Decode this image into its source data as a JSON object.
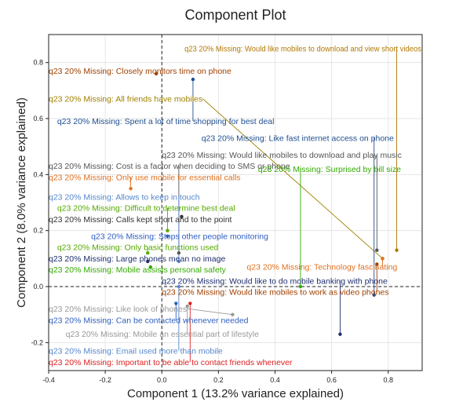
{
  "chart_data": {
    "type": "scatter",
    "title": "Component Plot",
    "xlabel": "Component 1 (13.2% variance explained)",
    "ylabel": "Component 2 (8.0% variance explained)",
    "xlim": [
      -0.4,
      0.92
    ],
    "ylim": [
      -0.3,
      0.9
    ],
    "xticks": [
      "-0.4",
      "-0.2",
      "0.0",
      "0.2",
      "0.4",
      "0.6",
      "0.8"
    ],
    "yticks": [
      "-0.2",
      "0.0",
      "0.2",
      "0.4",
      "0.6",
      "0.8"
    ],
    "grid": true,
    "points": [
      {
        "label": "q23 20% Missing: Would like mobiles to download and view short videos",
        "x": 0.83,
        "y": 0.13,
        "lx": 0.08,
        "ly": 0.84,
        "color": "#b07800"
      },
      {
        "label": "q23 20% Missing: Closely monitors time on phone",
        "x": -0.02,
        "y": 0.76,
        "lx": -0.4,
        "ly": 0.76,
        "color": "#a04000"
      },
      {
        "label": "q23 20% Missing: All friends have mobiles",
        "x": 0.78,
        "y": 0.1,
        "lx": -0.4,
        "ly": 0.66,
        "color": "#a08000"
      },
      {
        "label": "q23 20% Missing: Spent a lot of time shopping for best deal",
        "x": 0.11,
        "y": 0.74,
        "lx": -0.37,
        "ly": 0.58,
        "color": "#1f4f8f"
      },
      {
        "label": "q23 20% Missing: Like fast internet access on phone",
        "x": 0.75,
        "y": -0.03,
        "lx": 0.14,
        "ly": 0.52,
        "color": "#1f4f8f"
      },
      {
        "label": "q23 20% Missing: Would like mobiles to download and play music",
        "x": 0.76,
        "y": 0.13,
        "lx": 0.0,
        "ly": 0.46,
        "color": "#555555"
      },
      {
        "label": "q23 20% Missing: Cost is a factor when deciding to SMS or phone",
        "x": 0.06,
        "y": 0.12,
        "lx": -0.4,
        "ly": 0.42,
        "color": "#555555"
      },
      {
        "label": "q23 20% Missing: Surprised by bill size",
        "x": 0.49,
        "y": 0.0,
        "lx": 0.34,
        "ly": 0.41,
        "color": "#33aa00"
      },
      {
        "label": "q23 20% Missing: Only use mobile for essential calls",
        "x": -0.11,
        "y": 0.35,
        "lx": -0.4,
        "ly": 0.38,
        "color": "#e07020"
      },
      {
        "label": "q23 20% Missing: Allows to keep in touch",
        "x": 0.06,
        "y": 0.09,
        "lx": -0.4,
        "ly": 0.31,
        "color": "#5588cc"
      },
      {
        "label": "q23 20% Missing: Difficult to determine best deal",
        "x": 0.02,
        "y": 0.2,
        "lx": -0.37,
        "ly": 0.27,
        "color": "#55aa00"
      },
      {
        "label": "q23 20% Missing: Calls kept short and to the point",
        "x": 0.07,
        "y": 0.25,
        "lx": -0.4,
        "ly": 0.23,
        "color": "#333333"
      },
      {
        "label": "q23 20% Missing: Stops other people monitoring",
        "x": 0.02,
        "y": 0.18,
        "lx": -0.25,
        "ly": 0.17,
        "color": "#2f5fbf"
      },
      {
        "label": "q23 20% Missing: Only basic functions used",
        "x": -0.05,
        "y": 0.12,
        "lx": -0.37,
        "ly": 0.13,
        "color": "#55aa00"
      },
      {
        "label": "q23 20% Missing: Large phones mean no image",
        "x": -0.05,
        "y": 0.09,
        "lx": -0.4,
        "ly": 0.09,
        "color": "#1f2f6f"
      },
      {
        "label": "q23 20% Missing: Mobile assists personal safety",
        "x": -0.04,
        "y": 0.07,
        "lx": -0.4,
        "ly": 0.05,
        "color": "#33aa00"
      },
      {
        "label": "q23 20% Missing: Technology fascinating",
        "x": 0.78,
        "y": 0.1,
        "lx": 0.3,
        "ly": 0.06,
        "color": "#e07020"
      },
      {
        "label": "q23 20% Missing: Would like to do mobile banking with phone",
        "x": 0.63,
        "y": -0.17,
        "lx": 0.0,
        "ly": 0.01,
        "color": "#1f2f6f"
      },
      {
        "label": "q23 20% Missing: Would like mobiles to work as video phones",
        "x": 0.76,
        "y": 0.08,
        "lx": 0.0,
        "ly": -0.03,
        "color": "#a04000"
      },
      {
        "label": "q23 20% Missing: Like look of phones",
        "x": 0.25,
        "y": -0.1,
        "lx": -0.4,
        "ly": -0.09,
        "color": "#999999"
      },
      {
        "label": "q23 20% Missing: Can be contacted whenever needed",
        "x": 0.05,
        "y": -0.06,
        "lx": -0.4,
        "ly": -0.13,
        "color": "#2f5fbf"
      },
      {
        "label": "q23 20% Missing: Mobile an essential part of lifestyle",
        "x": 0.09,
        "y": -0.07,
        "lx": -0.34,
        "ly": -0.18,
        "color": "#999999"
      },
      {
        "label": "q23 20% Missing: Email used more than mobile",
        "x": 0.06,
        "y": 0.0,
        "lx": -0.4,
        "ly": -0.24,
        "color": "#5588cc"
      },
      {
        "label": "q23 20% Missing: Important to be able to contact friends whenever",
        "x": 0.1,
        "y": -0.06,
        "lx": -0.4,
        "ly": -0.28,
        "color": "#dd2222"
      }
    ]
  }
}
